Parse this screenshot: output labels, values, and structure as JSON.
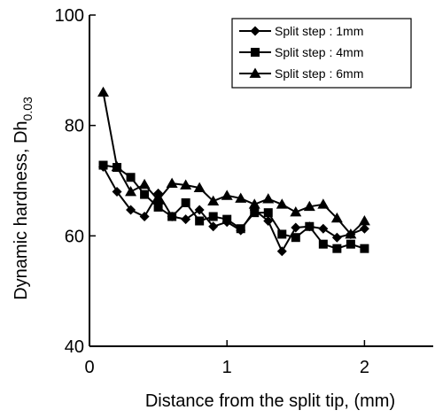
{
  "chart_data": {
    "type": "line",
    "title": "",
    "xlabel": "Distance from the split tip, (mm)",
    "ylabel_main": "Dynamic hardness, Dh",
    "ylabel_subscript": "0.03",
    "xlim": [
      0,
      2.5
    ],
    "ylim": [
      40,
      100
    ],
    "x_ticks": [
      0,
      1,
      2
    ],
    "y_ticks": [
      40,
      60,
      80,
      100
    ],
    "x_tick_labels": [
      "0",
      "1",
      "2"
    ],
    "y_tick_labels": [
      "40",
      "60",
      "80",
      "100"
    ],
    "grid": false,
    "legend_position": "top-right",
    "x": [
      0.1,
      0.2,
      0.3,
      0.4,
      0.5,
      0.6,
      0.7,
      0.8,
      0.9,
      1.0,
      1.1,
      1.2,
      1.3,
      1.4,
      1.5,
      1.6,
      1.7,
      1.8,
      1.9,
      2.0
    ],
    "series": [
      {
        "name": "Split step : 1mm",
        "marker": "diamond",
        "values": [
          72.5,
          68.0,
          64.7,
          63.5,
          67.7,
          63.5,
          63.0,
          64.7,
          61.7,
          62.5,
          61.0,
          64.7,
          62.7,
          57.2,
          61.5,
          61.7,
          61.3,
          59.7,
          60.3,
          61.3
        ]
      },
      {
        "name": "Split step : 4mm",
        "marker": "square",
        "values": [
          72.8,
          72.4,
          70.6,
          67.5,
          65.2,
          63.5,
          66.0,
          62.7,
          63.5,
          63.0,
          61.3,
          64.2,
          64.2,
          60.3,
          59.7,
          61.7,
          58.5,
          57.7,
          58.5,
          57.7
        ]
      },
      {
        "name": "Split step : 6mm",
        "marker": "triangle",
        "values": [
          86.0,
          72.5,
          68.0,
          69.3,
          66.5,
          69.5,
          69.2,
          68.7,
          66.3,
          67.3,
          66.8,
          65.7,
          66.7,
          65.7,
          64.3,
          65.3,
          65.7,
          63.2,
          60.3,
          62.7
        ]
      }
    ],
    "colors": {
      "line": "#000000",
      "marker": "#000000",
      "background": "#ffffff"
    }
  }
}
